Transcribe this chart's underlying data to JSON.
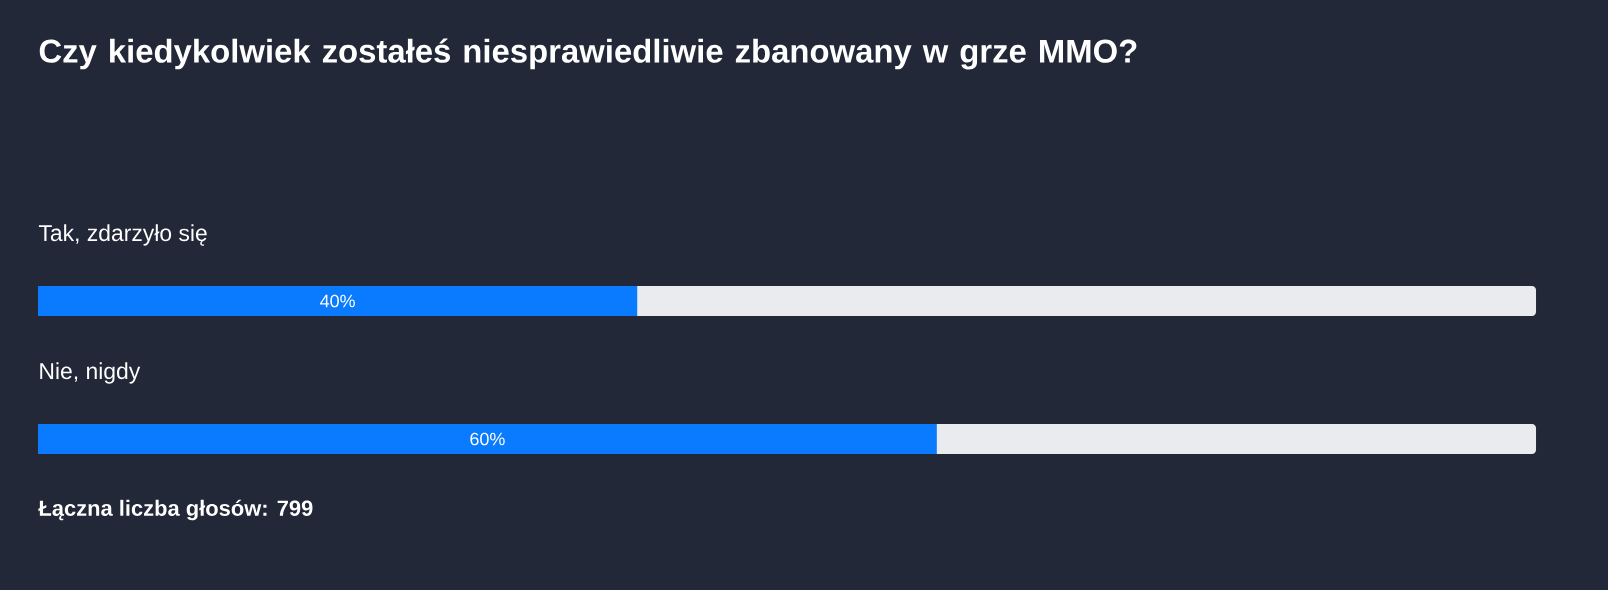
{
  "chart_data": {
    "type": "bar",
    "orientation": "horizontal",
    "title": "Czy kiedykolwiek zostałeś niesprawiedliwie zbanowany w grze MMO?",
    "categories": [
      "Tak, zdarzyło się",
      "Nie, nigdy"
    ],
    "values": [
      40,
      60
    ],
    "value_labels": [
      "40%",
      "60%"
    ],
    "color": "#0a7aff",
    "xlim": [
      0,
      100
    ],
    "annotations": [
      "Łączna liczba głosów: 799"
    ]
  }
}
